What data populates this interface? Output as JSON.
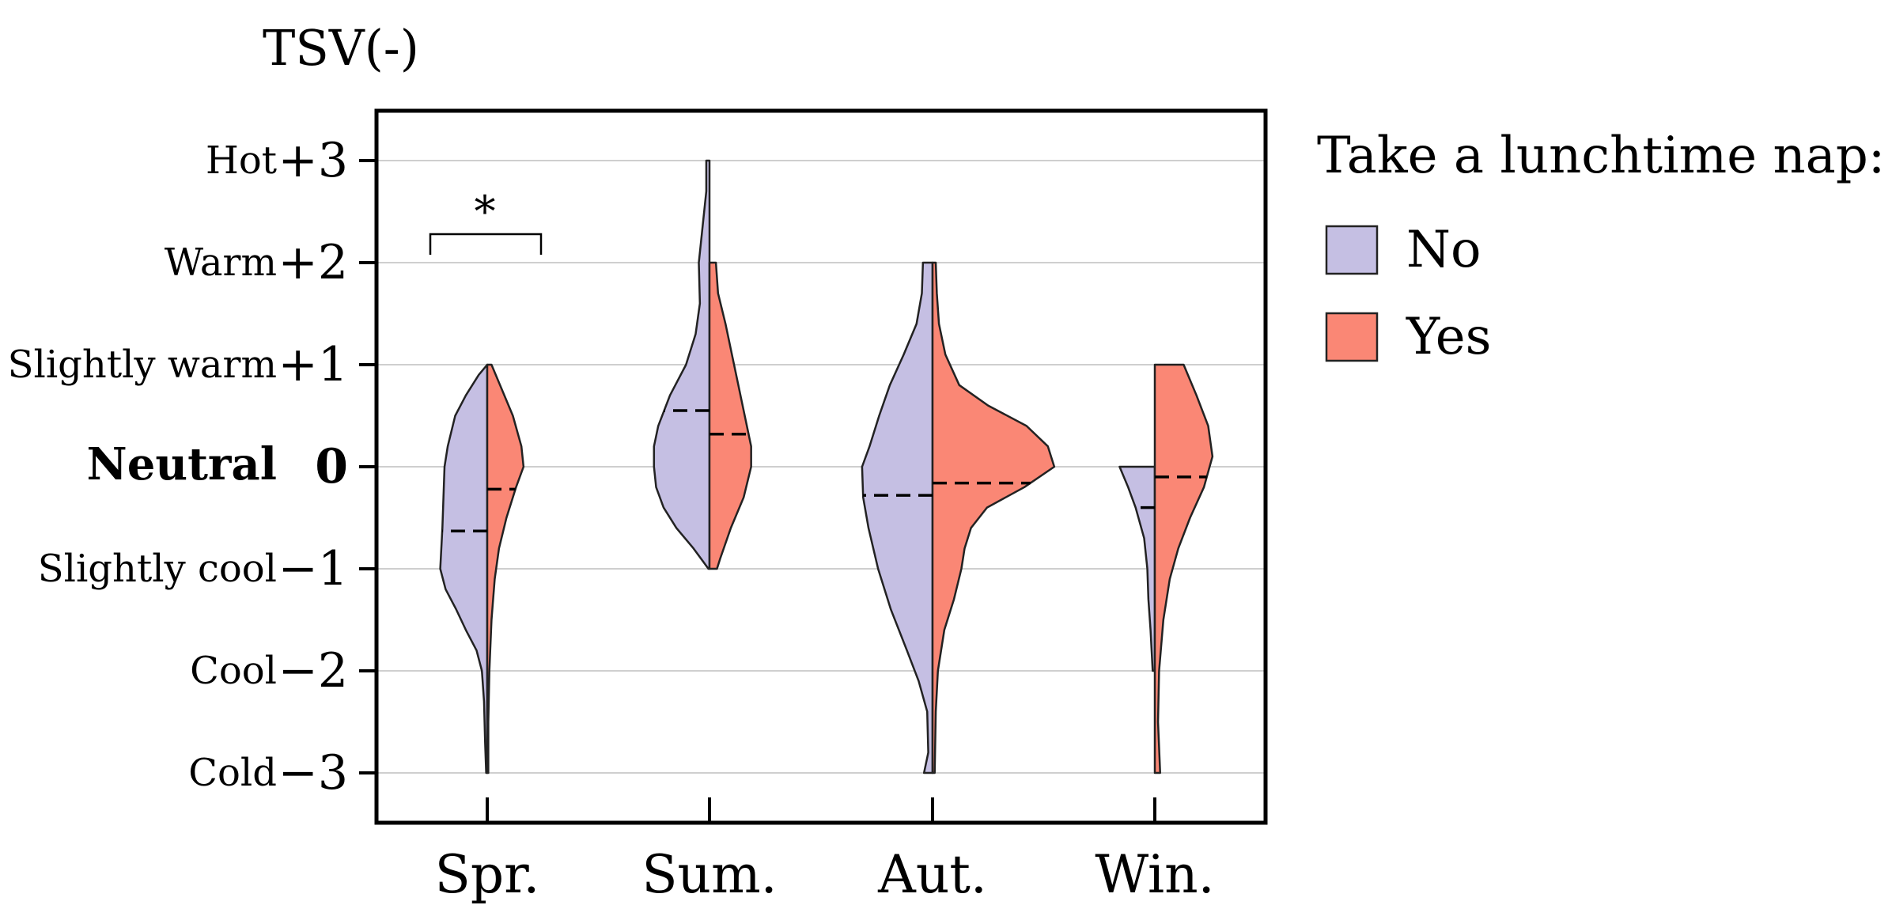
{
  "chart_data": {
    "type": "violin",
    "ylabel": "TSV(-)",
    "ylim": [
      -3.5,
      3.5
    ],
    "y_ticks": [
      {
        "value": 3,
        "number": "+3",
        "label": "Hot",
        "bold": false
      },
      {
        "value": 2,
        "number": "+2",
        "label": "Warm",
        "bold": false
      },
      {
        "value": 1,
        "number": "+1",
        "label": "Slightly warm",
        "bold": false
      },
      {
        "value": 0,
        "number": "0",
        "label": "Neutral",
        "bold": true
      },
      {
        "value": -1,
        "number": "−1",
        "label": "Slightly cool",
        "bold": false
      },
      {
        "value": -2,
        "number": "−2",
        "label": "Cool",
        "bold": false
      },
      {
        "value": -3,
        "number": "−3",
        "label": "Cold",
        "bold": false
      }
    ],
    "grid": true,
    "categories": [
      "Spr.",
      "Sum.",
      "Aut.",
      "Win."
    ],
    "legend": {
      "title": "Take a lunchtime nap:",
      "position": "right"
    },
    "series": [
      {
        "name": "No",
        "color": "#C5BFE3",
        "side": "left",
        "means": [
          -0.63,
          0.55,
          -0.28,
          -0.4
        ],
        "density": [
          [
            [
              1.0,
              0.0
            ],
            [
              0.9,
              0.08
            ],
            [
              0.7,
              0.2
            ],
            [
              0.5,
              0.3
            ],
            [
              0.2,
              0.37
            ],
            [
              0.0,
              0.4
            ],
            [
              -0.3,
              0.41
            ],
            [
              -0.6,
              0.42
            ],
            [
              -0.8,
              0.43
            ],
            [
              -1.0,
              0.44
            ],
            [
              -1.2,
              0.39
            ],
            [
              -1.4,
              0.29
            ],
            [
              -1.6,
              0.2
            ],
            [
              -1.8,
              0.1
            ],
            [
              -2.0,
              0.05
            ],
            [
              -2.3,
              0.03
            ],
            [
              -2.7,
              0.02
            ],
            [
              -3.0,
              0.01
            ]
          ],
          [
            [
              3.0,
              0.03
            ],
            [
              2.7,
              0.03
            ],
            [
              2.4,
              0.06
            ],
            [
              2.0,
              0.1
            ],
            [
              1.6,
              0.09
            ],
            [
              1.3,
              0.13
            ],
            [
              1.0,
              0.22
            ],
            [
              0.7,
              0.37
            ],
            [
              0.4,
              0.48
            ],
            [
              0.2,
              0.52
            ],
            [
              0.0,
              0.52
            ],
            [
              -0.2,
              0.5
            ],
            [
              -0.4,
              0.43
            ],
            [
              -0.6,
              0.31
            ],
            [
              -0.8,
              0.15
            ],
            [
              -1.0,
              0.01
            ]
          ],
          [
            [
              2.0,
              0.09
            ],
            [
              1.7,
              0.1
            ],
            [
              1.4,
              0.15
            ],
            [
              1.1,
              0.27
            ],
            [
              0.8,
              0.4
            ],
            [
              0.5,
              0.5
            ],
            [
              0.2,
              0.59
            ],
            [
              0.0,
              0.66
            ],
            [
              -0.3,
              0.65
            ],
            [
              -0.6,
              0.6
            ],
            [
              -1.0,
              0.51
            ],
            [
              -1.4,
              0.39
            ],
            [
              -1.8,
              0.24
            ],
            [
              -2.1,
              0.13
            ],
            [
              -2.4,
              0.05
            ],
            [
              -2.8,
              0.04
            ],
            [
              -3.0,
              0.08
            ]
          ],
          [
            [
              0.0,
              0.33
            ],
            [
              -0.2,
              0.25
            ],
            [
              -0.4,
              0.18
            ],
            [
              -0.7,
              0.1
            ],
            [
              -1.0,
              0.07
            ],
            [
              -1.3,
              0.06
            ],
            [
              -1.6,
              0.04
            ],
            [
              -2.0,
              0.02
            ]
          ]
        ]
      },
      {
        "name": "Yes",
        "color": "#FA8775",
        "side": "right",
        "means": [
          -0.22,
          0.32,
          -0.16,
          -0.1
        ],
        "density": [
          [
            [
              1.0,
              0.04
            ],
            [
              0.8,
              0.12
            ],
            [
              0.5,
              0.24
            ],
            [
              0.2,
              0.32
            ],
            [
              0.0,
              0.34
            ],
            [
              -0.2,
              0.27
            ],
            [
              -0.5,
              0.18
            ],
            [
              -0.8,
              0.11
            ],
            [
              -1.1,
              0.07
            ],
            [
              -1.5,
              0.04
            ],
            [
              -2.0,
              0.02
            ],
            [
              -2.5,
              0.01
            ],
            [
              -3.0,
              0.01
            ]
          ],
          [
            [
              2.0,
              0.06
            ],
            [
              1.7,
              0.08
            ],
            [
              1.4,
              0.15
            ],
            [
              1.1,
              0.21
            ],
            [
              0.8,
              0.27
            ],
            [
              0.5,
              0.33
            ],
            [
              0.2,
              0.39
            ],
            [
              0.0,
              0.39
            ],
            [
              -0.3,
              0.32
            ],
            [
              -0.6,
              0.2
            ],
            [
              -0.9,
              0.1
            ],
            [
              -1.0,
              0.07
            ]
          ],
          [
            [
              2.0,
              0.03
            ],
            [
              1.7,
              0.04
            ],
            [
              1.4,
              0.06
            ],
            [
              1.1,
              0.12
            ],
            [
              0.8,
              0.25
            ],
            [
              0.6,
              0.52
            ],
            [
              0.4,
              0.88
            ],
            [
              0.2,
              1.08
            ],
            [
              0.0,
              1.14
            ],
            [
              -0.2,
              0.86
            ],
            [
              -0.4,
              0.51
            ],
            [
              -0.6,
              0.36
            ],
            [
              -0.8,
              0.3
            ],
            [
              -1.0,
              0.27
            ],
            [
              -1.3,
              0.2
            ],
            [
              -1.6,
              0.11
            ],
            [
              -2.0,
              0.05
            ],
            [
              -2.4,
              0.03
            ],
            [
              -3.0,
              0.02
            ]
          ],
          [
            [
              1.0,
              0.27
            ],
            [
              0.7,
              0.39
            ],
            [
              0.4,
              0.5
            ],
            [
              0.1,
              0.54
            ],
            [
              -0.2,
              0.46
            ],
            [
              -0.5,
              0.33
            ],
            [
              -0.8,
              0.22
            ],
            [
              -1.1,
              0.14
            ],
            [
              -1.5,
              0.08
            ],
            [
              -2.0,
              0.04
            ],
            [
              -2.5,
              0.03
            ],
            [
              -3.0,
              0.05
            ]
          ]
        ]
      }
    ],
    "annotations": [
      {
        "text": "*",
        "category_index": 0,
        "type": "significance-bracket"
      }
    ]
  }
}
